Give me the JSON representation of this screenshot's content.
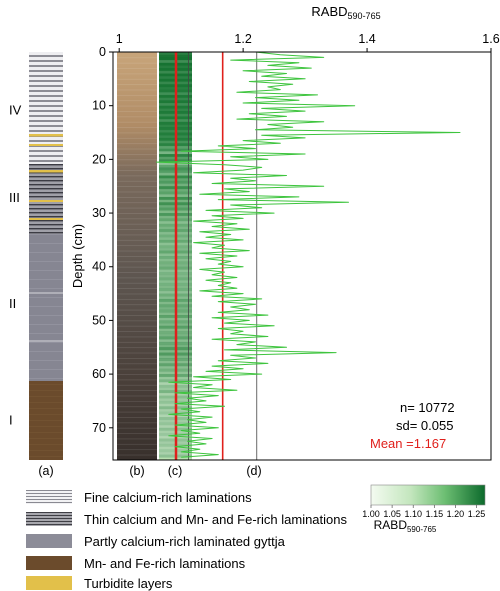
{
  "panel_labels": [
    "(a)",
    "(b)",
    "(c)",
    "(d)"
  ],
  "units": [
    {
      "label": "IV",
      "top": 0,
      "bottom": 21.5
    },
    {
      "label": "III",
      "top": 21.5,
      "bottom": 32.5
    },
    {
      "label": "II",
      "top": 32.5,
      "bottom": 61
    },
    {
      "label": "I",
      "top": 61,
      "bottom": 76
    }
  ],
  "legend": [
    {
      "label": "Fine calcium-rich laminations",
      "pattern": "fine"
    },
    {
      "label": "Thin calcium and Mn- and Fe-rich laminations",
      "pattern": "thin"
    },
    {
      "label": "Partly calcium-rich laminated gyttja",
      "pattern": "partly"
    },
    {
      "label": "Mn- and Fe-rich laminations",
      "pattern": "mnfe"
    },
    {
      "label": "Turbidite layers",
      "pattern": "turb"
    }
  ],
  "colorbar": {
    "label": "RABD590-765",
    "label_main": "RABD",
    "label_sub": "590-765",
    "ticks": [
      "1.00",
      "1.05",
      "1.10",
      "1.15",
      "1.20",
      "1.25"
    ],
    "min": 1.0,
    "max": 1.27,
    "color_low": "#f4fbf1",
    "color_high": "#0c6a2c"
  },
  "colors": {
    "series": "#3ec43e",
    "mean_line": "#e0201c",
    "mean_text": "#e0201c",
    "sd_lines": "#444444",
    "unit_mnfe": "#6b4b2c",
    "unit_partly": "#868692",
    "turbidite": "#e2c04a"
  },
  "chart_data": {
    "type": "line",
    "title": "",
    "xlabel": "RABD590-765",
    "xlabel_main": "RABD",
    "xlabel_sub": "590-765",
    "ylabel": "Depth (cm)",
    "xlim": [
      0.99,
      1.6
    ],
    "ylim": [
      0,
      76
    ],
    "y_inverted": true,
    "xticks": [
      1,
      1.2,
      1.4,
      1.6
    ],
    "xtick_labels": [
      "1",
      "1.2",
      "1.4",
      "1.6"
    ],
    "yticks": [
      0,
      10,
      20,
      30,
      40,
      50,
      60,
      70
    ],
    "ytick_labels": [
      "0",
      "10",
      "20",
      "30",
      "40",
      "50",
      "60",
      "70"
    ],
    "mean": 1.167,
    "sd": 0.055,
    "n": 10772,
    "reference_lines": [
      1.112,
      1.167,
      1.222
    ],
    "stats_text": {
      "n": "n= 10772",
      "sd": "sd= 0.055",
      "mean": "Mean =1.167"
    },
    "series": [
      {
        "depth": [
          0,
          0.5,
          1,
          1.5,
          2,
          2.5,
          3,
          3.5,
          4,
          4.5,
          5,
          5.5,
          6,
          6.5,
          7,
          7.5,
          8,
          8.5,
          9,
          9.5,
          10,
          10.5,
          11,
          11.5,
          12,
          12.5,
          13,
          13.5,
          14,
          14.5,
          15,
          15.5,
          16,
          16.5,
          17,
          17.5,
          18,
          18.5,
          19,
          19.5,
          20,
          20.5,
          21,
          21.5,
          22,
          22.5,
          23,
          23.5,
          24,
          24.5,
          25,
          25.5,
          26,
          26.5,
          27,
          27.5,
          28,
          28.5,
          29,
          29.5,
          30,
          30.5,
          31,
          31.5,
          32,
          32.5,
          33,
          33.5,
          34,
          34.5,
          35,
          35.5,
          36,
          36.5,
          37,
          37.5,
          38,
          38.5,
          39,
          39.5,
          40,
          40.5,
          41,
          41.5,
          42,
          42.5,
          43,
          43.5,
          44,
          44.5,
          45,
          45.5,
          46,
          46.5,
          47,
          47.5,
          48,
          48.5,
          49,
          49.5,
          50,
          50.5,
          51,
          51.5,
          52,
          52.5,
          53,
          53.5,
          54,
          54.5,
          55,
          55.5,
          56,
          56.5,
          57,
          57.5,
          58,
          58.5,
          59,
          59.5,
          60,
          60.5,
          61,
          61.5,
          62,
          62.5,
          63,
          63.5,
          64,
          64.5,
          65,
          65.5,
          66,
          66.5,
          67,
          67.5,
          68,
          68.5,
          69,
          69.5,
          70,
          70.5,
          71,
          71.5,
          72,
          72.5,
          73,
          73.5,
          74,
          74.5,
          75,
          75.5
        ],
        "values": [
          1.22,
          1.26,
          1.33,
          1.18,
          1.29,
          1.24,
          1.31,
          1.2,
          1.27,
          1.23,
          1.3,
          1.21,
          1.28,
          1.24,
          1.26,
          1.19,
          1.32,
          1.22,
          1.29,
          1.2,
          1.38,
          1.23,
          1.3,
          1.21,
          1.27,
          1.19,
          1.33,
          1.24,
          1.28,
          1.22,
          1.55,
          1.23,
          1.3,
          1.2,
          1.26,
          1.16,
          1.22,
          1.1,
          1.3,
          1.18,
          1.24,
          1.06,
          1.17,
          1.23,
          1.2,
          1.12,
          1.27,
          1.18,
          1.22,
          1.15,
          1.33,
          1.17,
          1.21,
          1.13,
          1.29,
          1.16,
          1.37,
          1.18,
          1.23,
          1.14,
          1.25,
          1.15,
          1.2,
          1.12,
          1.19,
          1.15,
          1.21,
          1.13,
          1.18,
          1.14,
          1.2,
          1.12,
          1.17,
          1.15,
          1.21,
          1.13,
          1.19,
          1.14,
          1.18,
          1.16,
          1.2,
          1.13,
          1.17,
          1.15,
          1.19,
          1.14,
          1.18,
          1.16,
          1.19,
          1.13,
          1.2,
          1.15,
          1.23,
          1.16,
          1.22,
          1.18,
          1.21,
          1.16,
          1.24,
          1.15,
          1.21,
          1.17,
          1.25,
          1.16,
          1.2,
          1.18,
          1.24,
          1.15,
          1.22,
          1.19,
          1.27,
          1.17,
          1.35,
          1.18,
          1.22,
          1.16,
          1.24,
          1.15,
          1.2,
          1.14,
          1.23,
          1.12,
          1.18,
          1.08,
          1.15,
          1.12,
          1.19,
          1.09,
          1.16,
          1.11,
          1.14,
          1.09,
          1.17,
          1.1,
          1.13,
          1.08,
          1.15,
          1.11,
          1.14,
          1.09,
          1.16,
          1.1,
          1.13,
          1.08,
          1.15,
          1.11,
          1.14,
          1.09,
          1.13,
          1.1,
          1.16,
          1.1
        ]
      }
    ]
  }
}
